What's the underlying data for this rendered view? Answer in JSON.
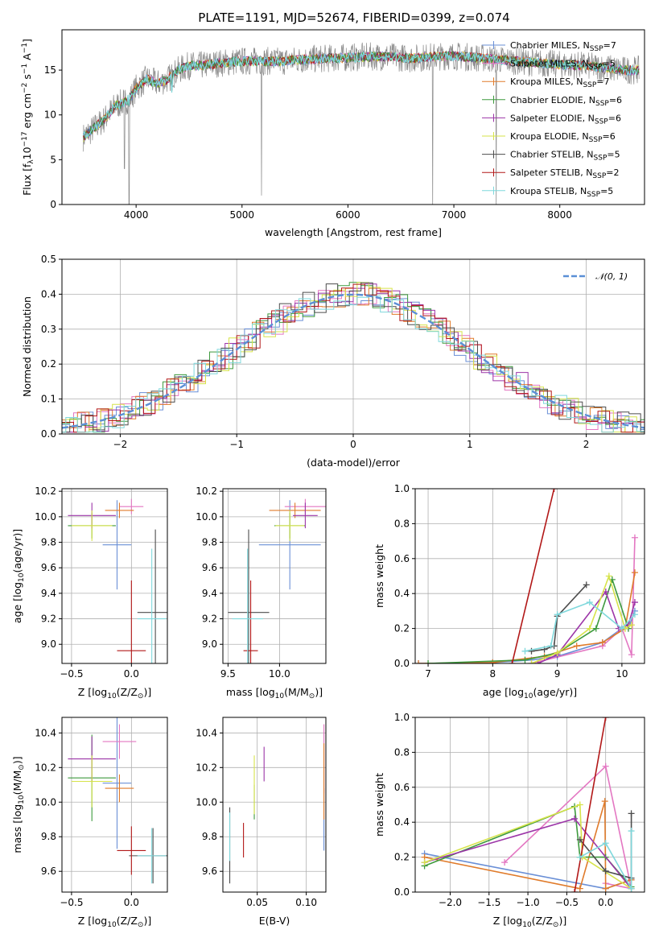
{
  "chart_data": [
    {
      "id": "spectrum",
      "type": "line",
      "title": "PLATE=1191, MJD=52674, FIBERID=0399, z=0.074",
      "xlabel": "wavelength [Angstrom, rest frame]",
      "ylabel": "Flux [f$_\\lambda$10$^{-17}$ erg cm$^{-2}$ s$^{-1}$ A$^{-1}$]",
      "ylabel_parts": [
        "Flux [f",
        "λ",
        "10",
        "−17",
        " erg cm",
        "−2",
        " s",
        "−1",
        " A",
        "−1",
        "]"
      ],
      "xlim": [
        3300,
        8800
      ],
      "ylim": [
        0,
        19.5
      ],
      "xticks": [
        4000,
        5000,
        6000,
        7000,
        8000
      ],
      "yticks": [
        0,
        5,
        10,
        15
      ],
      "grid": false,
      "legend_placement": "right",
      "legend": [
        {
          "prefix": "Chabrier MILES, N",
          "sub": "SSP",
          "suffix": "=7",
          "color": "#6a8fd6"
        },
        {
          "prefix": "Salpeter MILES, N",
          "sub": "SSP",
          "suffix": "=5",
          "color": "#e377c2"
        },
        {
          "prefix": "Kroupa MILES, N",
          "sub": "SSP",
          "suffix": "=7",
          "color": "#e07b2b"
        },
        {
          "prefix": "Chabrier ELODIE, N",
          "sub": "SSP",
          "suffix": "=6",
          "color": "#3e9a3e"
        },
        {
          "prefix": "Salpeter ELODIE, N",
          "sub": "SSP",
          "suffix": "=6",
          "color": "#9c35a8"
        },
        {
          "prefix": "Kroupa ELODIE, N",
          "sub": "SSP",
          "suffix": "=6",
          "color": "#d6e34a"
        },
        {
          "prefix": "Chabrier STELIB, N",
          "sub": "SSP",
          "suffix": "=5",
          "color": "#4d4d4d"
        },
        {
          "prefix": "Salpeter STELIB, N",
          "sub": "SSP",
          "suffix": "=2",
          "color": "#b21818"
        },
        {
          "prefix": "Kroupa STELIB, N",
          "sub": "SSP",
          "suffix": "=5",
          "color": "#7fd8dc"
        }
      ],
      "series": [
        {
          "x": [
            3500,
            3600,
            3700,
            3800,
            3900,
            3950,
            4000,
            4100,
            4200,
            4300,
            4400,
            4500,
            4600,
            4800,
            5000,
            5200,
            5400,
            5600,
            5800,
            6000,
            6200,
            6400,
            6600,
            6800,
            7000,
            7200,
            7400,
            7600,
            7800,
            8000,
            8200,
            8400,
            8600,
            8750
          ],
          "y": [
            7.5,
            8.5,
            9.5,
            11.0,
            11.5,
            12.0,
            13.0,
            14.0,
            13.5,
            14.0,
            15.0,
            15.5,
            15.5,
            15.8,
            16.0,
            16.0,
            16.0,
            16.2,
            16.3,
            16.4,
            16.5,
            16.5,
            16.3,
            16.5,
            16.6,
            16.4,
            16.2,
            16.0,
            15.8,
            15.6,
            15.5,
            15.3,
            15.0,
            15.0
          ]
        }
      ]
    },
    {
      "id": "residuals",
      "type": "line",
      "xlabel": "(data-model)/error",
      "ylabel": "Normed distribution",
      "xlim": [
        -2.5,
        2.5
      ],
      "ylim": [
        0,
        0.5
      ],
      "xticks": [
        -2,
        -1,
        0,
        1,
        2
      ],
      "yticks": [
        0.0,
        0.1,
        0.2,
        0.3,
        0.4,
        0.5
      ],
      "grid": true,
      "legend_placement": "top-right",
      "legend": [
        {
          "label": "𝒩(0, 1)",
          "color": "#5b8fd6"
        }
      ],
      "bin_width": 0.1,
      "gaussian": {
        "mean": 0,
        "sigma": 1
      }
    },
    {
      "id": "age-vs-Z",
      "type": "scatter",
      "xlabel": "Z [log10(Z/Z☉)]",
      "xlabel_parts": [
        "Z [log",
        "10",
        "(Z/Z",
        "⊙",
        ")]"
      ],
      "ylabel": "age [log10(age/yr)]",
      "ylabel_parts": [
        "age  [log",
        "10",
        "(age/yr)]"
      ],
      "xlim": [
        -0.58,
        0.3
      ],
      "ylim": [
        8.85,
        10.22
      ],
      "xticks": [
        -0.5,
        0.0
      ],
      "yticks": [
        9.0,
        9.2,
        9.4,
        9.6,
        9.8,
        10.0,
        10.2
      ],
      "grid": true,
      "points": [
        {
          "x": -0.12,
          "y": 9.78,
          "xerr": 0.12,
          "yerr": 0.35,
          "color": "#6a8fd6"
        },
        {
          "x": 0.0,
          "y": 10.08,
          "xerr": 0.1,
          "yerr": 0.06,
          "color": "#e377c2"
        },
        {
          "x": -0.1,
          "y": 10.05,
          "xerr": 0.12,
          "yerr": 0.06,
          "color": "#e07b2b"
        },
        {
          "x": -0.33,
          "y": 9.93,
          "xerr": 0.2,
          "yerr": 0.1,
          "color": "#3e9a3e"
        },
        {
          "x": -0.33,
          "y": 10.01,
          "xerr": 0.2,
          "yerr": 0.1,
          "color": "#9c35a8"
        },
        {
          "x": -0.33,
          "y": 9.93,
          "xerr": 0.17,
          "yerr": 0.12,
          "color": "#d6e34a"
        },
        {
          "x": 0.2,
          "y": 9.25,
          "xerr": 0.15,
          "yerr": 0.65,
          "color": "#4d4d4d"
        },
        {
          "x": 0.0,
          "y": 8.95,
          "xerr": 0.12,
          "yerr": 0.55,
          "color": "#b21818"
        },
        {
          "x": 0.17,
          "y": 9.2,
          "xerr": 0.12,
          "yerr": 0.55,
          "color": "#7fd8dc"
        }
      ]
    },
    {
      "id": "age-vs-mass",
      "type": "scatter",
      "xlabel": "mass [log10(M/M☉)]",
      "xlabel_parts": [
        "mass [log",
        "10",
        "(M/M",
        "⊙",
        ")]"
      ],
      "xlim": [
        9.45,
        10.45
      ],
      "ylim": [
        8.85,
        10.22
      ],
      "xticks": [
        9.5,
        10.0
      ],
      "yticks": [
        9.0,
        9.2,
        9.4,
        9.6,
        9.8,
        10.0,
        10.2
      ],
      "grid": true,
      "points": [
        {
          "x": 10.1,
          "y": 9.78,
          "xerr": 0.3,
          "yerr": 0.35,
          "color": "#6a8fd6"
        },
        {
          "x": 10.25,
          "y": 10.08,
          "xerr": 0.2,
          "yerr": 0.06,
          "color": "#e377c2"
        },
        {
          "x": 10.15,
          "y": 10.05,
          "xerr": 0.25,
          "yerr": 0.06,
          "color": "#e07b2b"
        },
        {
          "x": 10.1,
          "y": 9.93,
          "xerr": 0.15,
          "yerr": 0.1,
          "color": "#3e9a3e"
        },
        {
          "x": 10.25,
          "y": 10.01,
          "xerr": 0.12,
          "yerr": 0.1,
          "color": "#9c35a8"
        },
        {
          "x": 10.1,
          "y": 9.93,
          "xerr": 0.14,
          "yerr": 0.12,
          "color": "#d6e34a"
        },
        {
          "x": 9.7,
          "y": 9.25,
          "xerr": 0.2,
          "yerr": 0.65,
          "color": "#4d4d4d"
        },
        {
          "x": 9.72,
          "y": 8.95,
          "xerr": 0.07,
          "yerr": 0.55,
          "color": "#b21818"
        },
        {
          "x": 9.69,
          "y": 9.2,
          "xerr": 0.15,
          "yerr": 0.55,
          "color": "#7fd8dc"
        }
      ]
    },
    {
      "id": "weight-vs-age",
      "type": "line",
      "xlabel": "age [log10(age/yr)]",
      "xlabel_parts": [
        "age  [log",
        "10",
        "(age/yr)]"
      ],
      "ylabel": "mass weight",
      "xlim": [
        6.8,
        10.35
      ],
      "ylim": [
        0,
        1
      ],
      "xticks": [
        7,
        8,
        9,
        10
      ],
      "yticks": [
        0.0,
        0.2,
        0.4,
        0.6,
        0.8,
        1.0
      ],
      "grid": true,
      "series": [
        {
          "color": "#6a8fd6",
          "x": [
            6.85,
            8.0,
            8.6,
            9.0,
            9.7,
            10.0,
            10.1,
            10.2
          ],
          "y": [
            0.0,
            0.005,
            0.02,
            0.04,
            0.12,
            0.2,
            0.2,
            0.3
          ]
        },
        {
          "color": "#e377c2",
          "x": [
            8.6,
            9.7,
            10.0,
            10.15,
            10.2
          ],
          "y": [
            0.0,
            0.1,
            0.2,
            0.05,
            0.72
          ]
        },
        {
          "color": "#e07b2b",
          "x": [
            6.85,
            8.0,
            8.8,
            9.3,
            9.7,
            10.05,
            10.2
          ],
          "y": [
            0.0,
            0.005,
            0.04,
            0.1,
            0.12,
            0.2,
            0.52
          ]
        },
        {
          "color": "#3e9a3e",
          "x": [
            7.0,
            8.5,
            9.0,
            9.6,
            9.85,
            10.1
          ],
          "y": [
            0.0,
            0.02,
            0.06,
            0.2,
            0.48,
            0.2
          ]
        },
        {
          "color": "#9c35a8",
          "x": [
            8.7,
            9.0,
            9.75,
            9.95,
            10.1,
            10.2
          ],
          "y": [
            0.0,
            0.05,
            0.41,
            0.2,
            0.22,
            0.35
          ]
        },
        {
          "color": "#d6e34a",
          "x": [
            8.6,
            9.0,
            9.5,
            9.8,
            10.05,
            10.15
          ],
          "y": [
            0.0,
            0.06,
            0.2,
            0.5,
            0.2,
            0.22
          ]
        },
        {
          "color": "#4d4d4d",
          "x": [
            8.6,
            8.8,
            8.95,
            9.0,
            9.45
          ],
          "y": [
            0.07,
            0.08,
            0.1,
            0.27,
            0.45
          ]
        },
        {
          "color": "#b21818",
          "x": [
            8.3,
            8.95
          ],
          "y": [
            0.0,
            1.0
          ]
        },
        {
          "color": "#7fd8dc",
          "x": [
            8.5,
            8.9,
            9.0,
            9.5,
            10.0,
            10.2
          ],
          "y": [
            0.07,
            0.1,
            0.28,
            0.35,
            0.2,
            0.28
          ]
        }
      ]
    },
    {
      "id": "mass-vs-Z",
      "type": "scatter",
      "xlabel": "Z [log10(Z/Z☉)]",
      "xlabel_parts": [
        "Z [log",
        "10",
        "(Z/Z",
        "⊙",
        ")]"
      ],
      "ylabel": "mass [log10(M/M☉)]",
      "ylabel_parts": [
        "mass [log",
        "10",
        "(M/M",
        "⊙",
        ")]"
      ],
      "xlim": [
        -0.58,
        0.3
      ],
      "ylim": [
        9.48,
        10.49
      ],
      "xticks": [
        -0.5,
        0.0
      ],
      "yticks": [
        9.6,
        9.8,
        10.0,
        10.2,
        10.4
      ],
      "grid": true,
      "points": [
        {
          "x": -0.12,
          "y": 10.11,
          "xerr": 0.12,
          "yerr": 0.38,
          "color": "#6a8fd6"
        },
        {
          "x": -0.1,
          "y": 10.35,
          "xerr": 0.14,
          "yerr": 0.1,
          "color": "#e377c2"
        },
        {
          "x": -0.1,
          "y": 10.08,
          "xerr": 0.12,
          "yerr": 0.08,
          "color": "#e07b2b"
        },
        {
          "x": -0.33,
          "y": 10.14,
          "xerr": 0.2,
          "yerr": 0.25,
          "color": "#3e9a3e"
        },
        {
          "x": -0.33,
          "y": 10.25,
          "xerr": 0.2,
          "yerr": 0.13,
          "color": "#9c35a8"
        },
        {
          "x": -0.33,
          "y": 10.12,
          "xerr": 0.17,
          "yerr": 0.15,
          "color": "#d6e34a"
        },
        {
          "x": 0.18,
          "y": 9.69,
          "xerr": 0.2,
          "yerr": 0.16,
          "color": "#4d4d4d"
        },
        {
          "x": 0.0,
          "y": 9.72,
          "xerr": 0.12,
          "yerr": 0.14,
          "color": "#b21818"
        },
        {
          "x": 0.17,
          "y": 9.69,
          "xerr": 0.12,
          "yerr": 0.16,
          "color": "#7fd8dc"
        }
      ]
    },
    {
      "id": "mass-vs-EBV",
      "type": "scatter",
      "xlabel": "E(B-V)",
      "xlim": [
        0.015,
        0.12
      ],
      "ylim": [
        9.48,
        10.49
      ],
      "xticks": [
        0.05,
        0.1
      ],
      "yticks": [
        9.6,
        9.8,
        10.0,
        10.2,
        10.4
      ],
      "grid": true,
      "points": [
        {
          "x": 0.118,
          "y": 9.9,
          "xerr": 0,
          "yerr": 0.18,
          "color": "#6a8fd6"
        },
        {
          "x": 0.118,
          "y": 10.25,
          "xerr": 0,
          "yerr": 0.2,
          "color": "#e377c2"
        },
        {
          "x": 0.118,
          "y": 10.12,
          "xerr": 0,
          "yerr": 0.22,
          "color": "#e07b2b"
        },
        {
          "x": 0.047,
          "y": 10.0,
          "xerr": 0,
          "yerr": 0.1,
          "color": "#3e9a3e"
        },
        {
          "x": 0.057,
          "y": 10.22,
          "xerr": 0,
          "yerr": 0.1,
          "color": "#9c35a8"
        },
        {
          "x": 0.047,
          "y": 10.1,
          "xerr": 0,
          "yerr": 0.17,
          "color": "#d6e34a"
        },
        {
          "x": 0.022,
          "y": 9.75,
          "xerr": 0,
          "yerr": 0.22,
          "color": "#4d4d4d"
        },
        {
          "x": 0.036,
          "y": 9.78,
          "xerr": 0,
          "yerr": 0.1,
          "color": "#b21818"
        },
        {
          "x": 0.022,
          "y": 9.8,
          "xerr": 0,
          "yerr": 0.14,
          "color": "#7fd8dc"
        }
      ]
    },
    {
      "id": "weight-vs-Z",
      "type": "line",
      "xlabel": "Z [log10(Z/Z☉)]",
      "xlabel_parts": [
        "Z [log",
        "10",
        "(Z/Z",
        "⊙",
        ")]"
      ],
      "ylabel": "mass weight",
      "xlim": [
        -2.45,
        0.5
      ],
      "ylim": [
        0,
        1
      ],
      "xticks": [
        -2.0,
        -1.5,
        -1.0,
        -0.5,
        0.0
      ],
      "yticks": [
        0.0,
        0.2,
        0.4,
        0.6,
        0.8,
        1.0
      ],
      "grid": true,
      "series": [
        {
          "color": "#6a8fd6",
          "x": [
            -2.33,
            0.0,
            0.33
          ],
          "y": [
            0.22,
            0.02,
            0.07
          ]
        },
        {
          "color": "#e377c2",
          "x": [
            -1.3,
            0.0,
            0.33,
            0.0
          ],
          "y": [
            0.17,
            0.72,
            0.02,
            0.05
          ]
        },
        {
          "color": "#e07b2b",
          "x": [
            -2.33,
            -0.33,
            -0.01,
            0.0,
            0.33
          ],
          "y": [
            0.2,
            0.02,
            0.52,
            0.02,
            0.07
          ]
        },
        {
          "color": "#3e9a3e",
          "x": [
            -2.33,
            -0.4,
            -0.33,
            0.0,
            0.33
          ],
          "y": [
            0.15,
            0.49,
            0.2,
            0.2,
            0.03
          ]
        },
        {
          "color": "#9c35a8",
          "x": [
            -2.33,
            -0.4,
            0.33
          ],
          "y": [
            0.17,
            0.42,
            0.02
          ]
        },
        {
          "color": "#d6e34a",
          "x": [
            -2.33,
            -0.33,
            -0.3,
            0.33
          ],
          "y": [
            0.17,
            0.5,
            0.2,
            0.02
          ]
        },
        {
          "color": "#4d4d4d",
          "x": [
            -0.33,
            0.0,
            0.33,
            0.33
          ],
          "y": [
            0.3,
            0.12,
            0.08,
            0.45
          ]
        },
        {
          "color": "#b21818",
          "x": [
            -0.4,
            0.0
          ],
          "y": [
            0.0,
            1.0
          ]
        },
        {
          "color": "#7fd8dc",
          "x": [
            -0.33,
            0.0,
            0.33,
            0.33
          ],
          "y": [
            0.2,
            0.28,
            0.02,
            0.35
          ]
        }
      ]
    }
  ]
}
